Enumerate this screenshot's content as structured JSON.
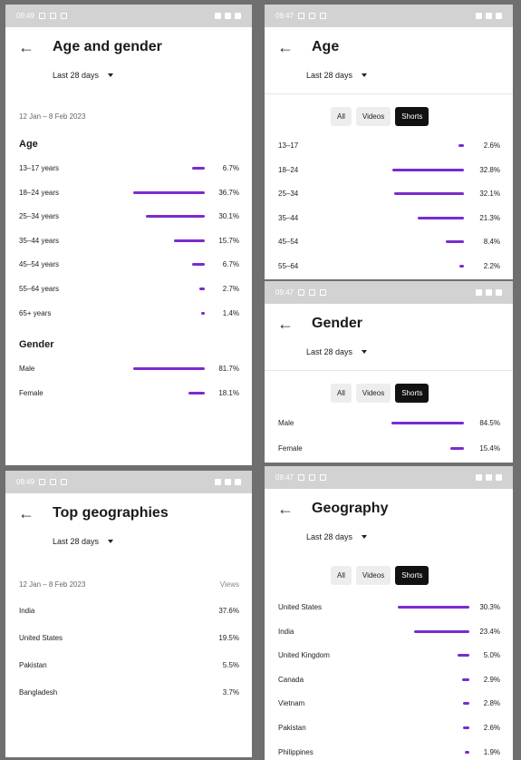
{
  "status": {
    "time_a": "09:49",
    "time_b": "09:47"
  },
  "panels": {
    "age_gender": {
      "title": "Age and gender",
      "period": "Last 28 days",
      "date_range": "12 Jan – 8 Feb 2023",
      "age_heading": "Age",
      "age": [
        {
          "label": "13–17 years",
          "pct": "6.7%",
          "v": 6.7
        },
        {
          "label": "18–24 years",
          "pct": "36.7%",
          "v": 36.7
        },
        {
          "label": "25–34 years",
          "pct": "30.1%",
          "v": 30.1
        },
        {
          "label": "35–44 years",
          "pct": "15.7%",
          "v": 15.7
        },
        {
          "label": "45–54 years",
          "pct": "6.7%",
          "v": 6.7
        },
        {
          "label": "55–64 years",
          "pct": "2.7%",
          "v": 2.7
        },
        {
          "label": "65+ years",
          "pct": "1.4%",
          "v": 1.4
        }
      ],
      "gender_heading": "Gender",
      "gender": [
        {
          "label": "Male",
          "pct": "81.7%",
          "v": 81.7
        },
        {
          "label": "Female",
          "pct": "18.1%",
          "v": 18.1
        }
      ]
    },
    "geo_top": {
      "title": "Top geographies",
      "period": "Last 28 days",
      "date_range": "12 Jan – 8 Feb 2023",
      "views_label": "Views",
      "rows": [
        {
          "label": "India",
          "pct": "37.6%"
        },
        {
          "label": "United States",
          "pct": "19.5%"
        },
        {
          "label": "Pakistan",
          "pct": "5.5%"
        },
        {
          "label": "Bangladesh",
          "pct": "3.7%"
        }
      ]
    },
    "age_shorts": {
      "title": "Age",
      "period": "Last 28 days",
      "rows": [
        {
          "label": "13–17",
          "pct": "2.6%",
          "v": 2.6
        },
        {
          "label": "18–24",
          "pct": "32.8%",
          "v": 32.8
        },
        {
          "label": "25–34",
          "pct": "32.1%",
          "v": 32.1
        },
        {
          "label": "35–44",
          "pct": "21.3%",
          "v": 21.3
        },
        {
          "label": "45–54",
          "pct": "8.4%",
          "v": 8.4
        },
        {
          "label": "55–64",
          "pct": "2.2%",
          "v": 2.2
        }
      ]
    },
    "gender_shorts": {
      "title": "Gender",
      "period": "Last 28 days",
      "rows": [
        {
          "label": "Male",
          "pct": "84.5%",
          "v": 84.5
        },
        {
          "label": "Female",
          "pct": "15.4%",
          "v": 15.4
        }
      ]
    },
    "geo_shorts": {
      "title": "Geography",
      "period": "Last 28 days",
      "rows": [
        {
          "label": "United States",
          "pct": "30.3%",
          "v": 30.3
        },
        {
          "label": "India",
          "pct": "23.4%",
          "v": 23.4
        },
        {
          "label": "United Kingdom",
          "pct": "5.0%",
          "v": 5.0
        },
        {
          "label": "Canada",
          "pct": "2.9%",
          "v": 2.9
        },
        {
          "label": "Vietnam",
          "pct": "2.8%",
          "v": 2.8
        },
        {
          "label": "Pakistan",
          "pct": "2.6%",
          "v": 2.6
        },
        {
          "label": "Philippines",
          "pct": "1.9%",
          "v": 1.9
        }
      ]
    }
  },
  "tabs": {
    "all": "All",
    "videos": "Videos",
    "shorts": "Shorts",
    "active": "Shorts"
  },
  "colors": {
    "accent": "#7b2bcf"
  }
}
